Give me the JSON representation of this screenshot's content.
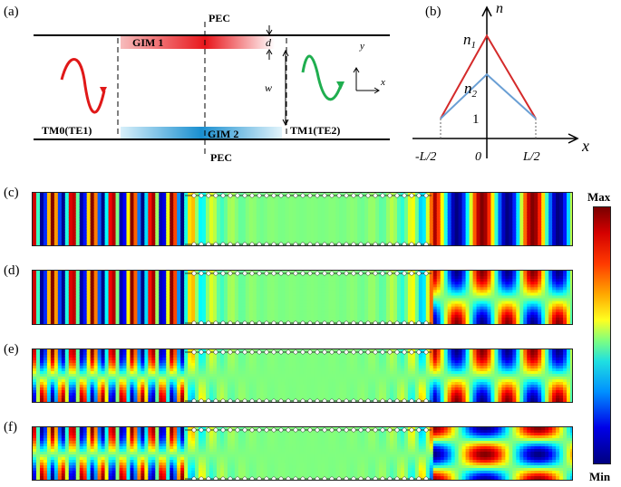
{
  "panel_a": {
    "tag": "(a)",
    "pec_top": "PEC",
    "pec_bottom": "PEC",
    "gim1": "GIM 1",
    "gim2": "GIM 2",
    "d": "d",
    "w": "w",
    "axis_x": "x",
    "axis_y": "y",
    "input_mode": "TM0(TE1)",
    "output_mode": "TM1(TE2)",
    "colors": {
      "gim1": "#e8161b",
      "gim2": "#1aa0d8",
      "input_wave": "#e01818",
      "output_wave": "#1fae4f"
    }
  },
  "panel_b": {
    "tag": "(b)",
    "axis_y": "n",
    "axis_x": "x",
    "n1": "n",
    "n1_sub": "1",
    "n2": "n",
    "n2_sub": "2",
    "one": "1",
    "minus_half": "-L/2",
    "zero": "0",
    "half": "L/2",
    "profiles": [
      {
        "name": "n1",
        "color": "#d42a2a",
        "values": [
          1,
          2.5,
          1
        ]
      },
      {
        "name": "n2",
        "color": "#6a9fd4",
        "values": [
          1,
          1.8,
          1
        ]
      }
    ]
  },
  "fields": [
    {
      "tag": "(c)",
      "input_mode": 0,
      "output_mode": 0
    },
    {
      "tag": "(d)",
      "input_mode": 0,
      "output_mode": 1
    },
    {
      "tag": "(e)",
      "input_mode": 1,
      "output_mode": 1
    },
    {
      "tag": "(f)",
      "input_mode": 1,
      "output_mode": 2
    }
  ],
  "colorbar": {
    "max": "Max",
    "min": "Min"
  }
}
